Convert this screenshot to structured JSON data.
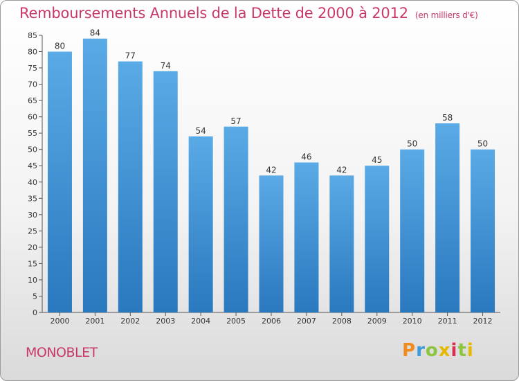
{
  "title": "Remboursements Annuels de la Dette de 2000 à 2012",
  "unit_note": "(en milliers d'€)",
  "commune": "MONOBLET",
  "logo_text": "Proxiti",
  "colors": {
    "title": "#c8386a",
    "bar_top": "#5aaae6",
    "bar_bottom": "#2a78be"
  },
  "chart_data": {
    "type": "bar",
    "title": "Remboursements Annuels de la Dette de 2000 à 2012",
    "subtitle": "(en milliers d'€)",
    "xlabel": "",
    "ylabel": "",
    "categories": [
      "2000",
      "2001",
      "2002",
      "2003",
      "2004",
      "2005",
      "2006",
      "2007",
      "2008",
      "2009",
      "2010",
      "2011",
      "2012"
    ],
    "values": [
      80,
      84,
      77,
      74,
      54,
      57,
      42,
      46,
      42,
      45,
      50,
      58,
      50
    ],
    "ylim": [
      0,
      85
    ],
    "yticks": [
      0,
      5,
      10,
      15,
      20,
      25,
      30,
      35,
      40,
      45,
      50,
      55,
      60,
      65,
      70,
      75,
      80,
      85
    ],
    "grid": false,
    "data_labels": true
  }
}
